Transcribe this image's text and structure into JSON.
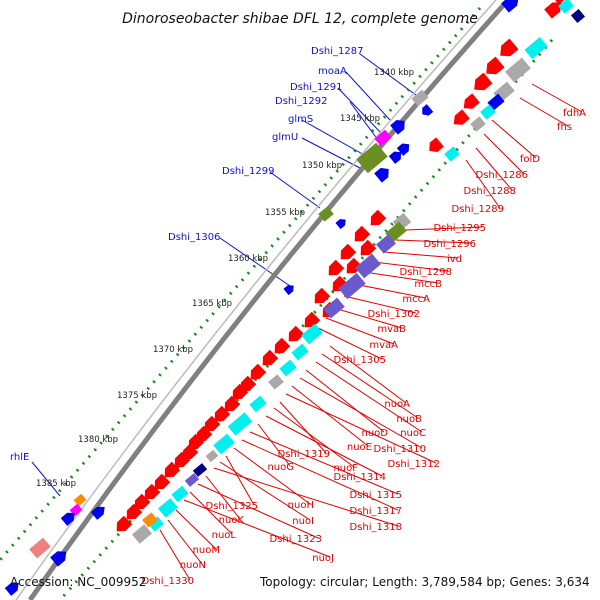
{
  "title": "Dinoroseobacter shibae DFL 12, complete genome",
  "footer": {
    "accession": "Accession: NC_009952",
    "summary": "Topology: circular; Length: 3,789,584 bp; Genes: 3,634"
  },
  "ticks": [
    "1340 kbp",
    "1345 kbp",
    "1350 kbp",
    "1355 kbp",
    "1360 kbp",
    "1365 kbp",
    "1370 kbp",
    "1375 kbp",
    "1380 kbp",
    "1385 kbp"
  ],
  "labels_left": [
    "Dshi_1287",
    "moaA",
    "Dshi_1291",
    "Dshi_1292",
    "glmS",
    "glmU",
    "Dshi_1299",
    "Dshi_1306",
    "rhlE"
  ],
  "labels_right": [
    "fdhA",
    "fhs",
    "folD",
    "Dshi_1286",
    "Dshi_1288",
    "Dshi_1289",
    "Dshi_1295",
    "Dshi_1296",
    "ivd",
    "Dshi_1298",
    "mccB",
    "mccA",
    "Dshi_1302",
    "mvaB",
    "mvaA",
    "Dshi_1305",
    "nuoA",
    "nuoB",
    "nuoC",
    "nuoD",
    "Dshi_1310",
    "nuoE",
    "Dshi_1312",
    "Dshi_1319",
    "nuoF",
    "Dshi_1314",
    "nuoG",
    "Dshi_1315",
    "Dshi_1317",
    "nuoH",
    "Dshi_1325",
    "nuoI",
    "Dshi_1318",
    "nuoK",
    "Dshi_1323",
    "nuoL",
    "nuoJ",
    "nuoM",
    "nuoN",
    "Dshi_1330"
  ],
  "colors": {
    "cds": "#ff0000",
    "blue_feature": "#0000ee",
    "tick": "#1a8a1a",
    "backbone": "#808080",
    "cyan": "#00f0f0",
    "purple": "#6a5acd",
    "olive": "#6b8e23",
    "grey": "#a9a9a9",
    "pink": "#f08080",
    "magenta": "#ff00ff",
    "orange": "#ff8c00",
    "navy": "#000080"
  }
}
